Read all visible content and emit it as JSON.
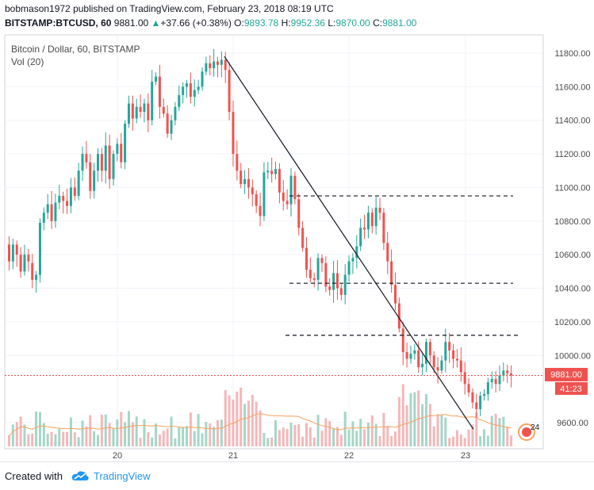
{
  "header": {
    "publisher": "bobmason1972 published on TradingView.com, February 23, 2018 08:19 UTC",
    "symbol": "BITSTAMP:BTCUSD, 60",
    "last": "9881.00",
    "change_arrow": "▲",
    "change": "+37.66 (+0.38%)",
    "o_label": "O:",
    "o_value": "9893.78",
    "h_label": "H:",
    "h_value": "9952.36",
    "l_label": "L:",
    "l_value": "9870.00",
    "c_label": "C:",
    "c_value": "9881.00"
  },
  "legend": {
    "series": "Bitcoin / Dollar, 60, BITSTAMP",
    "volume": "Vol (20)"
  },
  "footer": {
    "created": "Created with",
    "brand": "TradingView",
    "logo_icon": "tradingview-cloud-icon"
  },
  "chart_data": {
    "type": "candlestick",
    "y_ticks": [
      "11800.00",
      "11600.00",
      "11400.00",
      "11200.00",
      "11000.00",
      "10800.00",
      "10600.00",
      "10400.00",
      "10200.00",
      "10000.00",
      "9600.00"
    ],
    "y_range": [
      9480,
      11860
    ],
    "x_ticks": [
      "20",
      "21",
      "22",
      "23"
    ],
    "price_label": "9881.00",
    "countdown_label": "41:23",
    "timezone_badge": "24",
    "price_line": 9881,
    "colors": {
      "up": "#26a69a",
      "down": "#ef5350",
      "vol_up": "#a5d6c7",
      "vol_down": "#f5b7b9",
      "ma": "#f7a35c",
      "price_line": "#ef5350"
    },
    "candles": [
      [
        10660,
        10560
      ],
      [
        10560,
        10660
      ],
      [
        10660,
        10600
      ],
      [
        10600,
        10500
      ],
      [
        10500,
        10600
      ],
      [
        10600,
        10560
      ],
      [
        10550,
        10450
      ],
      [
        10450,
        10480
      ],
      [
        10480,
        10790
      ],
      [
        10790,
        10850
      ],
      [
        10850,
        10900
      ],
      [
        10900,
        10800
      ],
      [
        10800,
        10910
      ],
      [
        10910,
        10950
      ],
      [
        10950,
        10920
      ],
      [
        10920,
        10890
      ],
      [
        10890,
        11000
      ],
      [
        11000,
        10950
      ],
      [
        10950,
        11100
      ],
      [
        11100,
        11200
      ],
      [
        11200,
        11150
      ],
      [
        11150,
        10980
      ],
      [
        10980,
        11100
      ],
      [
        11100,
        11200
      ],
      [
        11200,
        11100
      ],
      [
        11100,
        11250
      ],
      [
        11250,
        11050
      ],
      [
        11050,
        11200
      ],
      [
        11200,
        11260
      ],
      [
        11260,
        11150
      ],
      [
        11150,
        11380
      ],
      [
        11380,
        11500
      ],
      [
        11500,
        11410
      ],
      [
        11410,
        11480
      ],
      [
        11480,
        11450
      ],
      [
        11450,
        11500
      ],
      [
        11500,
        11400
      ],
      [
        11400,
        11630
      ],
      [
        11630,
        11660
      ],
      [
        11660,
        11480
      ],
      [
        11480,
        11440
      ],
      [
        11440,
        11320
      ],
      [
        11320,
        11400
      ],
      [
        11400,
        11480
      ],
      [
        11480,
        11550
      ],
      [
        11550,
        11600
      ],
      [
        11600,
        11620
      ],
      [
        11620,
        11540
      ],
      [
        11540,
        11580
      ],
      [
        11580,
        11600
      ],
      [
        11600,
        11690
      ],
      [
        11690,
        11740
      ],
      [
        11740,
        11710
      ],
      [
        11710,
        11750
      ],
      [
        11750,
        11730
      ],
      [
        11730,
        11760
      ],
      [
        11760,
        11700
      ],
      [
        11700,
        11450
      ],
      [
        11450,
        11200
      ],
      [
        11200,
        11100
      ],
      [
        11100,
        11020
      ],
      [
        11020,
        11050
      ],
      [
        11050,
        11000
      ],
      [
        11000,
        10960
      ],
      [
        10960,
        10890
      ],
      [
        10890,
        10830
      ],
      [
        10830,
        11090
      ],
      [
        11090,
        11100
      ],
      [
        11100,
        11080
      ],
      [
        11080,
        11110
      ],
      [
        11110,
        10970
      ],
      [
        10970,
        10920
      ],
      [
        10920,
        10900
      ],
      [
        10900,
        11070
      ],
      [
        11070,
        10930
      ],
      [
        10930,
        10760
      ],
      [
        10760,
        10640
      ],
      [
        10640,
        10510
      ],
      [
        10510,
        10460
      ],
      [
        10460,
        10450
      ],
      [
        10450,
        10580
      ],
      [
        10580,
        10550
      ],
      [
        10550,
        10410
      ],
      [
        10410,
        10390
      ],
      [
        10390,
        10490
      ],
      [
        10490,
        10400
      ],
      [
        10400,
        10360
      ],
      [
        10360,
        10480
      ],
      [
        10480,
        10560
      ],
      [
        10560,
        10580
      ],
      [
        10580,
        10650
      ],
      [
        10650,
        10760
      ],
      [
        10760,
        10750
      ],
      [
        10750,
        10850
      ],
      [
        10850,
        10770
      ],
      [
        10770,
        10880
      ],
      [
        10880,
        10850
      ],
      [
        10850,
        10670
      ],
      [
        10670,
        10560
      ],
      [
        10560,
        10420
      ],
      [
        10420,
        10310
      ],
      [
        10310,
        10160
      ],
      [
        10160,
        10020
      ],
      [
        10020,
        9980
      ],
      [
        9980,
        10010
      ],
      [
        10010,
        10030
      ],
      [
        10030,
        9930
      ],
      [
        9930,
        9950
      ],
      [
        9950,
        10080
      ],
      [
        10080,
        10000
      ],
      [
        10000,
        9930
      ],
      [
        9930,
        9910
      ],
      [
        9910,
        9970
      ],
      [
        9970,
        10080
      ],
      [
        10080,
        10030
      ],
      [
        10030,
        9980
      ],
      [
        9980,
        9970
      ],
      [
        9970,
        9900
      ],
      [
        9900,
        9830
      ],
      [
        9830,
        9780
      ],
      [
        9780,
        9720
      ],
      [
        9720,
        9680
      ],
      [
        9680,
        9760
      ],
      [
        9760,
        9770
      ],
      [
        9770,
        9840
      ],
      [
        9840,
        9860
      ],
      [
        9860,
        9830
      ],
      [
        9830,
        9880
      ],
      [
        9880,
        9910
      ],
      [
        9910,
        9893
      ],
      [
        9893,
        9881
      ]
    ],
    "annotations": [
      "trend-line",
      "support-11000",
      "support-10430",
      "support-10120"
    ]
  }
}
